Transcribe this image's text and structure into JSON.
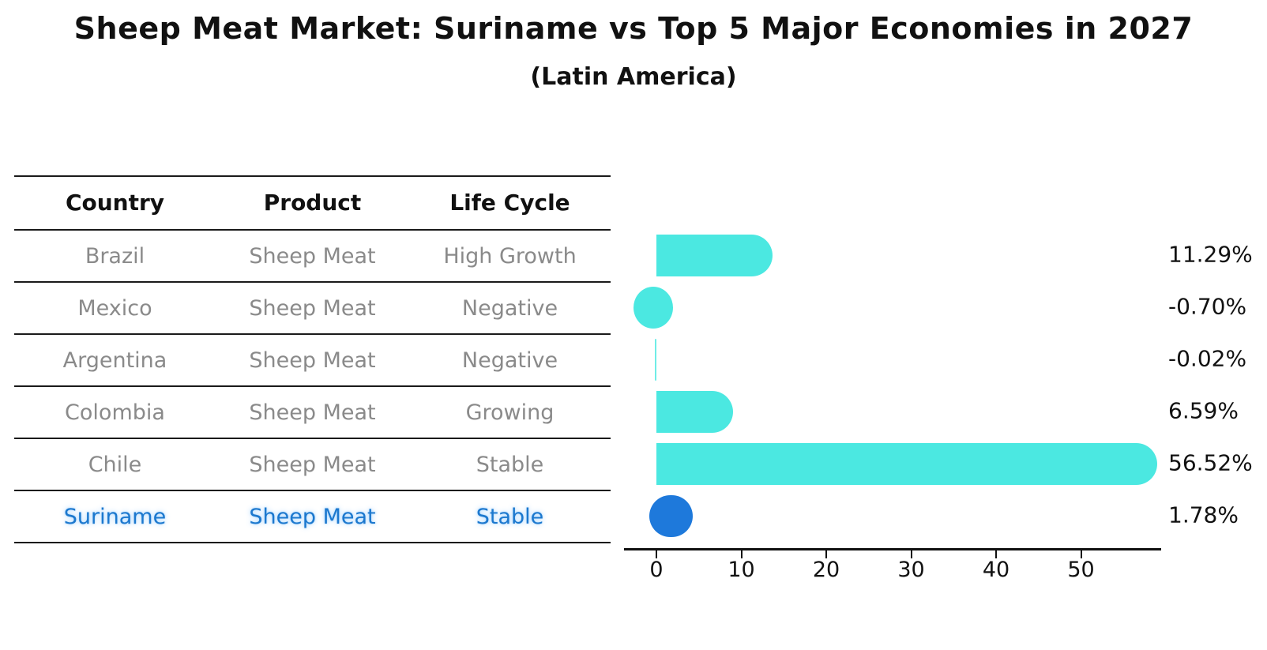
{
  "header": {
    "title": "Sheep Meat Market: Suriname vs Top 5 Major Economies in 2027",
    "subtitle": "(Latin America)"
  },
  "table": {
    "headers": [
      "Country",
      "Product",
      "Life Cycle"
    ],
    "rows": [
      {
        "country": "Brazil",
        "product": "Sheep Meat",
        "life_cycle": "High Growth",
        "highlight": false
      },
      {
        "country": "Mexico",
        "product": "Sheep Meat",
        "life_cycle": "Negative",
        "highlight": false
      },
      {
        "country": "Argentina",
        "product": "Sheep Meat",
        "life_cycle": "Negative",
        "highlight": false
      },
      {
        "country": "Colombia",
        "product": "Sheep Meat",
        "life_cycle": "Growing",
        "highlight": false
      },
      {
        "country": "Chile",
        "product": "Sheep Meat",
        "life_cycle": "Stable",
        "highlight": false
      },
      {
        "country": "Suriname",
        "product": "Sheep Meat",
        "life_cycle": "Stable",
        "highlight": true
      }
    ]
  },
  "chart_data": {
    "type": "bar",
    "orientation": "horizontal",
    "title": "Sheep Meat Market: Suriname vs Top 5 Major Economies in 2027 (Latin America)",
    "categories": [
      "Brazil",
      "Mexico",
      "Argentina",
      "Colombia",
      "Chile",
      "Suriname"
    ],
    "values": [
      11.29,
      -0.7,
      -0.02,
      6.59,
      56.52,
      1.78
    ],
    "value_labels": [
      "11.29%",
      "-0.70%",
      "-0.02%",
      "6.59%",
      "56.52%",
      "1.78%"
    ],
    "x_ticks": [
      0,
      10,
      20,
      30,
      40,
      50
    ],
    "xlim": [
      -4,
      59.5
    ],
    "grid": false,
    "legend": false,
    "bar_colors": [
      "#4be8e1",
      "#4be8e1",
      "#4be8e1",
      "#4be8e1",
      "#4be8e1",
      "#1e79db"
    ],
    "highlight_color": "#1e79db",
    "base_color": "#4be8e1"
  }
}
